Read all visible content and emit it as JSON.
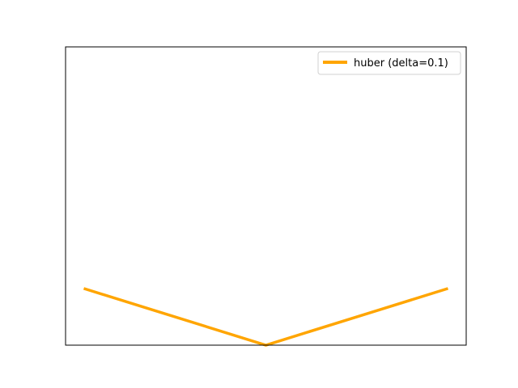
{
  "chart_data": {
    "type": "line",
    "title": "",
    "xlabel": "",
    "ylabel": "",
    "grid": false,
    "legend_placement": "top-right",
    "xlim": [
      -1.1,
      1.1
    ],
    "ylim": [
      0,
      0.5
    ],
    "series": [
      {
        "name": "huber (delta=0.1)",
        "color": "#FFA500",
        "x": [
          -1,
          0,
          1
        ],
        "y": [
          0.095,
          0,
          0.095
        ]
      }
    ]
  }
}
